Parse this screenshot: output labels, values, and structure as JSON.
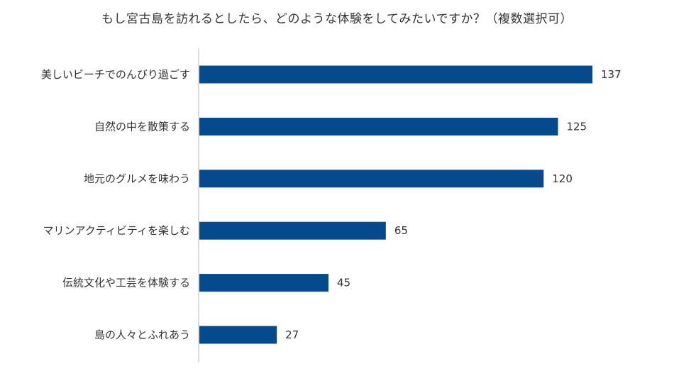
{
  "chart_data": {
    "type": "bar",
    "orientation": "horizontal",
    "title": "もし宮古島を訪れるとしたら、どのような体験をしてみたいですか？（複数選択可）",
    "categories": [
      "美しいビーチでのんびり過ごす",
      "自然の中を散策する",
      "地元のグルメを味わう",
      "マリンアクティビティを楽しむ",
      "伝統文化や工芸を体験する",
      "島の人々とふれあう"
    ],
    "values": [
      137,
      125,
      120,
      65,
      45,
      27
    ],
    "xlim": [
      0,
      137
    ],
    "grid": false,
    "legend": "none",
    "bar_color": "#044a8d",
    "axis_color": "#d0d0d0"
  }
}
